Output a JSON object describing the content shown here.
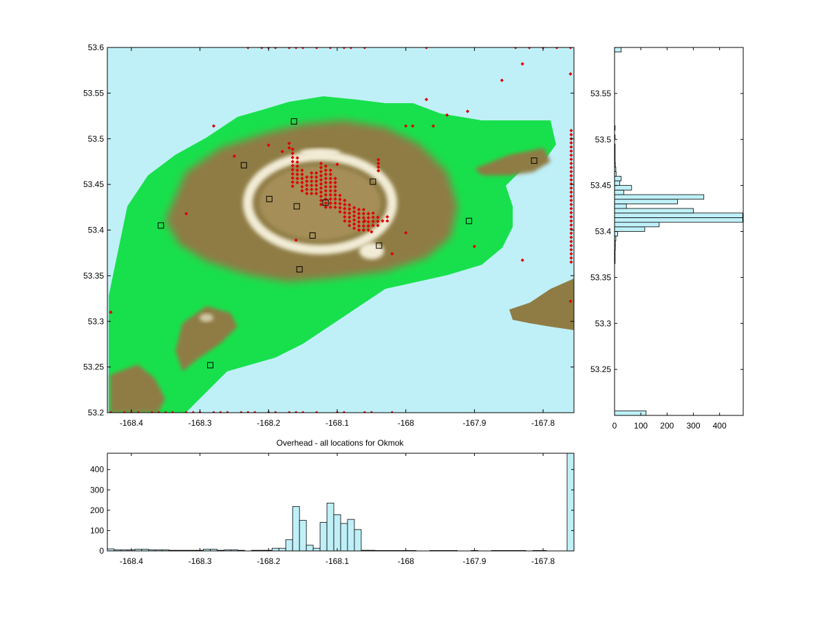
{
  "title": "Overhead - all locations for Okmok",
  "colors": {
    "sea": "#bff0f8",
    "lowland": "#18e04c",
    "slope": "#8f7c45",
    "summit": "#f2ecd6",
    "quake": "#dd0000",
    "station_edge": "#000000",
    "hist_fill": "#bff0f8"
  },
  "chart_data": [
    {
      "type": "scatter",
      "panel": "map",
      "xlim": [
        -168.435,
        -167.755
      ],
      "ylim": [
        53.2,
        53.6
      ],
      "x_ticks": [
        "-168.4",
        "-168.3",
        "-168.2",
        "-168.1",
        "-168",
        "-167.9",
        "-167.8"
      ],
      "x_tick_values": [
        -168.4,
        -168.3,
        -168.2,
        -168.1,
        -168.0,
        -167.9,
        -167.8
      ],
      "y_ticks": [
        "53.2",
        "53.25",
        "53.3",
        "53.35",
        "53.4",
        "53.45",
        "53.5",
        "53.55",
        "53.6"
      ],
      "y_tick_values": [
        53.2,
        53.25,
        53.3,
        53.35,
        53.4,
        53.45,
        53.5,
        53.55,
        53.6
      ],
      "grid": false,
      "stations": [
        [
          -168.163,
          53.519
        ],
        [
          -168.236,
          53.471
        ],
        [
          -168.199,
          53.434
        ],
        [
          -168.159,
          53.426
        ],
        [
          -168.117,
          53.43
        ],
        [
          -168.048,
          53.453
        ],
        [
          -168.136,
          53.394
        ],
        [
          -168.039,
          53.383
        ],
        [
          -168.155,
          53.357
        ],
        [
          -168.357,
          53.405
        ],
        [
          -167.908,
          53.41
        ],
        [
          -167.813,
          53.476
        ],
        [
          -168.285,
          53.252
        ]
      ],
      "quakes_edge_bottom_x": [
        -168.43,
        -168.41,
        -168.4,
        -168.39,
        -168.37,
        -168.36,
        -168.35,
        -168.34,
        -168.32,
        -168.31,
        -168.3,
        -168.28,
        -168.27,
        -168.26,
        -168.24,
        -168.23,
        -168.22,
        -168.2,
        -168.19,
        -168.17,
        -168.16,
        -168.15,
        -168.13,
        -168.1,
        -168.09,
        -168.06,
        -168.05,
        -168.02
      ],
      "quakes_edge_top_x": [
        -168.23,
        -168.21,
        -168.2,
        -168.19,
        -168.17,
        -168.16,
        -168.15,
        -168.13,
        -168.11,
        -168.09,
        -168.08,
        -168.06,
        -167.97,
        -167.84,
        -167.82,
        -167.8,
        -167.78,
        -167.76
      ],
      "quakes_column_x": -167.759,
      "quakes_column_y": [
        53.365,
        53.5105
      ],
      "quakes_scattered": [
        [
          -167.83,
          53.582
        ],
        [
          -167.86,
          53.564
        ],
        [
          -167.97,
          53.543
        ],
        [
          -167.91,
          53.53
        ],
        [
          -167.94,
          53.526
        ],
        [
          -167.76,
          53.571
        ],
        [
          -167.99,
          53.514
        ],
        [
          -168.0,
          53.514
        ],
        [
          -167.96,
          53.514
        ],
        [
          -168.28,
          53.514
        ],
        [
          -168.25,
          53.481
        ],
        [
          -168.2,
          53.493
        ],
        [
          -168.1,
          53.472
        ],
        [
          -168.04,
          53.477
        ],
        [
          -168.04,
          53.473
        ],
        [
          -168.04,
          53.469
        ],
        [
          -168.04,
          53.465
        ],
        [
          -168.06,
          53.41
        ],
        [
          -168.05,
          53.398
        ],
        [
          -168.0,
          53.397
        ],
        [
          -168.02,
          53.374
        ],
        [
          -168.16,
          53.389
        ],
        [
          -168.32,
          53.418
        ],
        [
          -168.43,
          53.31
        ],
        [
          -167.76,
          53.322
        ],
        [
          -167.9,
          53.382
        ],
        [
          -167.83,
          53.367
        ],
        [
          -168.18,
          53.486
        ],
        [
          -168.17,
          53.495
        ],
        [
          -168.17,
          53.49
        ]
      ],
      "quakes_grid_cluster": {
        "x_start": -168.165,
        "x_step": 0.0069,
        "columns": 21,
        "y_tops": [
          53.489,
          53.483,
          53.466,
          53.46,
          53.466,
          53.466,
          53.473,
          53.473,
          53.466,
          53.458,
          53.44,
          53.435,
          53.43,
          53.427,
          53.425,
          53.425,
          53.42,
          53.42,
          53.418,
          53.413,
          53.415
        ],
        "y_bottoms": [
          53.448,
          53.452,
          53.443,
          53.44,
          53.44,
          53.44,
          53.428,
          53.425,
          53.425,
          53.425,
          53.42,
          53.41,
          53.405,
          53.402,
          53.4,
          53.4,
          53.4,
          53.405,
          53.405,
          53.41,
          53.41
        ],
        "y_step": 0.0045
      }
    },
    {
      "type": "bar",
      "panel": "longitude-histogram",
      "xlim": [
        -168.435,
        -167.755
      ],
      "ylim": [
        0,
        480
      ],
      "x_ticks": [
        "-168.4",
        "-168.3",
        "-168.2",
        "-168.1",
        "-168",
        "-167.9",
        "-167.8"
      ],
      "x_tick_values": [
        -168.4,
        -168.3,
        -168.2,
        -168.1,
        -168.0,
        -167.9,
        -167.8
      ],
      "y_ticks": [
        "0",
        "100",
        "200",
        "300",
        "400"
      ],
      "y_tick_values": [
        0,
        100,
        200,
        300,
        400
      ],
      "bin_width": 0.01,
      "bin_start": -168.435,
      "counts": [
        10,
        5,
        5,
        5,
        8,
        8,
        5,
        5,
        5,
        3,
        3,
        3,
        3,
        3,
        8,
        8,
        3,
        5,
        5,
        3,
        0,
        3,
        3,
        3,
        13,
        13,
        55,
        218,
        150,
        28,
        13,
        140,
        235,
        178,
        135,
        155,
        105,
        3,
        3,
        2,
        2,
        2,
        2,
        2,
        2,
        0,
        0,
        2,
        2,
        2,
        2,
        0,
        0,
        2,
        0,
        0,
        2,
        2,
        2,
        2,
        2,
        0,
        2,
        2,
        0,
        0,
        0,
        480
      ]
    },
    {
      "type": "bar",
      "panel": "latitude-histogram",
      "orientation": "horizontal",
      "ylim": [
        53.2,
        53.6
      ],
      "xlim": [
        0,
        490
      ],
      "x_ticks": [
        "0",
        "100",
        "200",
        "300",
        "400"
      ],
      "x_tick_values": [
        0,
        100,
        200,
        300,
        400
      ],
      "y_ticks": [
        "53.25",
        "53.3",
        "53.35",
        "53.4",
        "53.45",
        "53.5",
        "53.55"
      ],
      "y_tick_values": [
        53.25,
        53.3,
        53.35,
        53.4,
        53.45,
        53.5,
        53.55
      ],
      "bin_height": 0.005,
      "bins": [
        [
          53.2,
          120
        ],
        [
          53.365,
          2
        ],
        [
          53.37,
          2
        ],
        [
          53.375,
          2
        ],
        [
          53.38,
          3
        ],
        [
          53.385,
          3
        ],
        [
          53.39,
          5
        ],
        [
          53.395,
          12
        ],
        [
          53.4,
          115
        ],
        [
          53.405,
          170
        ],
        [
          53.41,
          488
        ],
        [
          53.415,
          488
        ],
        [
          53.42,
          300
        ],
        [
          53.425,
          45
        ],
        [
          53.43,
          240
        ],
        [
          53.435,
          340
        ],
        [
          53.44,
          35
        ],
        [
          53.445,
          65
        ],
        [
          53.45,
          20
        ],
        [
          53.455,
          25
        ],
        [
          53.46,
          6
        ],
        [
          53.465,
          5
        ],
        [
          53.47,
          3
        ],
        [
          53.475,
          2
        ],
        [
          53.48,
          2
        ],
        [
          53.485,
          2
        ],
        [
          53.49,
          2
        ],
        [
          53.5,
          2
        ],
        [
          53.51,
          2
        ],
        [
          53.595,
          25
        ]
      ]
    }
  ]
}
